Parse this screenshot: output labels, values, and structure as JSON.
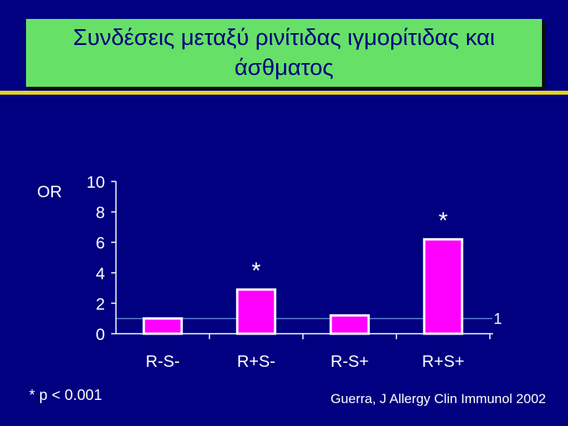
{
  "slide": {
    "title": "Συνδέσεις μεταξύ ρινίτιδας ιγμορίτιδας και άσθματος",
    "footnote": "* p < 0.001",
    "source": "Guerra, J Allergy Clin Immunol 2002"
  },
  "chart_data": {
    "type": "bar",
    "ylabel": "OR",
    "categories": [
      "R-S-",
      "R+S-",
      "R-S+",
      "R+S+"
    ],
    "values": [
      1.0,
      2.9,
      1.2,
      6.2
    ],
    "markers": [
      "",
      "*",
      "",
      "*"
    ],
    "ylim": [
      0,
      10
    ],
    "yticks": [
      0,
      2,
      4,
      6,
      8,
      10
    ],
    "reference_line": {
      "value": 1,
      "label": "1"
    },
    "grid": false,
    "legend": "none",
    "colors": {
      "bar": "#ff00ff",
      "bar_border": "#ffffff",
      "axis": "#ffffff",
      "reference": "#5b7fd6"
    }
  }
}
